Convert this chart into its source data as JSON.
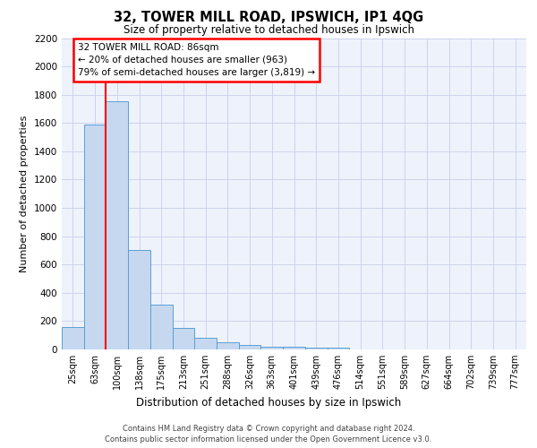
{
  "title": "32, TOWER MILL ROAD, IPSWICH, IP1 4QG",
  "subtitle": "Size of property relative to detached houses in Ipswich",
  "xlabel": "Distribution of detached houses by size in Ipswich",
  "ylabel": "Number of detached properties",
  "footer_line1": "Contains HM Land Registry data © Crown copyright and database right 2024.",
  "footer_line2": "Contains public sector information licensed under the Open Government Licence v3.0.",
  "bin_labels": [
    "25sqm",
    "63sqm",
    "100sqm",
    "138sqm",
    "175sqm",
    "213sqm",
    "251sqm",
    "288sqm",
    "326sqm",
    "363sqm",
    "401sqm",
    "439sqm",
    "476sqm",
    "514sqm",
    "551sqm",
    "589sqm",
    "627sqm",
    "664sqm",
    "702sqm",
    "739sqm",
    "777sqm"
  ],
  "bar_heights": [
    160,
    1590,
    1755,
    700,
    315,
    155,
    80,
    50,
    30,
    20,
    18,
    12,
    10,
    0,
    0,
    0,
    0,
    0,
    0,
    0,
    0
  ],
  "bar_color": "#c5d8f0",
  "bar_edgecolor": "#5a9fd4",
  "red_line_x": 1.5,
  "annotation_line1": "32 TOWER MILL ROAD: 86sqm",
  "annotation_line2": "← 20% of detached houses are smaller (963)",
  "annotation_line3": "79% of semi-detached houses are larger (3,819) →",
  "ylim": [
    0,
    2200
  ],
  "yticks": [
    0,
    200,
    400,
    600,
    800,
    1000,
    1200,
    1400,
    1600,
    1800,
    2000,
    2200
  ],
  "background_color": "#eef2fb",
  "grid_color": "#c8d0e8"
}
